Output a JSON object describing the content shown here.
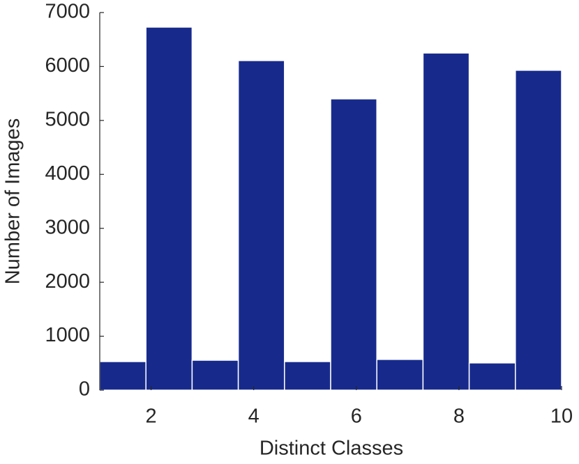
{
  "chart_data": {
    "type": "histogram",
    "x_label": "Distinct Classes",
    "y_label": "Number of Images",
    "bins": [
      1,
      1.9,
      2.8,
      3.7,
      4.6,
      5.5,
      6.4,
      7.3,
      8.2,
      9.1,
      10
    ],
    "values": [
      530,
      6730,
      555,
      6110,
      530,
      5400,
      570,
      6250,
      505,
      5930
    ],
    "color": "#172a8c",
    "xlim": [
      1,
      10
    ],
    "xticks": [
      2,
      4,
      6,
      8,
      10
    ],
    "ylim": [
      0,
      7000
    ],
    "yticks": [
      0,
      1000,
      2000,
      3000,
      4000,
      5000,
      6000,
      7000
    ]
  }
}
